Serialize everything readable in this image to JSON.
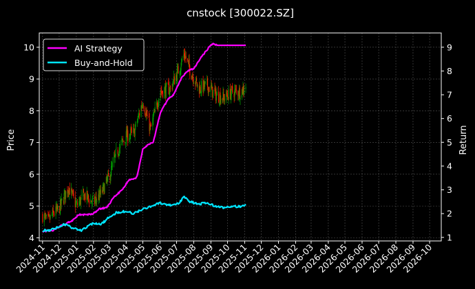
{
  "chart_data": {
    "type": "line",
    "title": "cnstock [300022.SZ]",
    "ylabel_left": "Price",
    "ylabel_right": "Return",
    "ylim_left": [
      3.9,
      10.45
    ],
    "ylim_right": [
      0.85,
      9.6
    ],
    "yticks_left": [
      4,
      5,
      6,
      7,
      8,
      9,
      10
    ],
    "yticks_right": [
      1,
      2,
      3,
      4,
      5,
      6,
      7,
      8,
      9
    ],
    "x_range": [
      "2024-10-26",
      "2026-10-22"
    ],
    "x_ticks": [
      "2024-11",
      "2024-12",
      "2025-01",
      "2025-02",
      "2025-03",
      "2025-04",
      "2025-05",
      "2025-06",
      "2025-07",
      "2025-08",
      "2025-09",
      "2025-10",
      "2025-11",
      "2025-12",
      "2026-01",
      "2026-02",
      "2026-03",
      "2026-04",
      "2026-05",
      "2026-06",
      "2026-07",
      "2026-08",
      "2026-09",
      "2026-10"
    ],
    "grid": true,
    "legend_position": "top-left",
    "colors": {
      "up": "#00a000",
      "down": "#ff1a00",
      "strategy": "#ff00ff",
      "buyhold": "#00e5ff",
      "grid": "#555555",
      "axes": "#ffffff"
    },
    "candles": {
      "name": "Price",
      "anchors": [
        [
          "2024-11-01",
          4.7
        ],
        [
          "2024-11-10",
          4.5
        ],
        [
          "2024-11-20",
          4.75
        ],
        [
          "2024-12-01",
          4.9
        ],
        [
          "2024-12-10",
          5.3
        ],
        [
          "2024-12-18",
          5.6
        ],
        [
          "2025-01-01",
          5.0
        ],
        [
          "2025-01-15",
          5.35
        ],
        [
          "2025-02-01",
          5.1
        ],
        [
          "2025-02-15",
          5.4
        ],
        [
          "2025-03-01",
          5.9
        ],
        [
          "2025-03-15",
          6.7
        ],
        [
          "2025-04-01",
          7.2
        ],
        [
          "2025-04-15",
          7.3
        ],
        [
          "2025-05-01",
          8.3
        ],
        [
          "2025-05-15",
          7.4
        ],
        [
          "2025-06-01",
          8.6
        ],
        [
          "2025-06-20",
          8.7
        ],
        [
          "2025-07-05",
          9.3
        ],
        [
          "2025-07-15",
          9.8
        ],
        [
          "2025-07-25",
          9.3
        ],
        [
          "2025-08-10",
          8.7
        ],
        [
          "2025-08-25",
          8.8
        ],
        [
          "2025-09-10",
          8.5
        ],
        [
          "2025-09-25",
          8.4
        ],
        [
          "2025-10-10",
          8.6
        ],
        [
          "2025-10-25",
          8.6
        ],
        [
          "2025-11-03",
          8.8
        ]
      ]
    },
    "series": [
      {
        "name": "AI Strategy",
        "axis": "right",
        "points": [
          [
            "2024-11-01",
            1.25
          ],
          [
            "2024-11-20",
            1.3
          ],
          [
            "2024-12-01",
            1.45
          ],
          [
            "2024-12-10",
            1.55
          ],
          [
            "2024-12-25",
            1.7
          ],
          [
            "2025-01-05",
            1.95
          ],
          [
            "2025-01-20",
            1.95
          ],
          [
            "2025-02-01",
            2.0
          ],
          [
            "2025-02-12",
            2.2
          ],
          [
            "2025-02-25",
            2.25
          ],
          [
            "2025-03-10",
            2.7
          ],
          [
            "2025-03-25",
            3.0
          ],
          [
            "2025-04-05",
            3.4
          ],
          [
            "2025-04-20",
            3.5
          ],
          [
            "2025-05-01",
            4.7
          ],
          [
            "2025-05-10",
            4.9
          ],
          [
            "2025-05-20",
            5.0
          ],
          [
            "2025-06-01",
            6.2
          ],
          [
            "2025-06-15",
            6.8
          ],
          [
            "2025-06-25",
            7.0
          ],
          [
            "2025-07-10",
            7.7
          ],
          [
            "2025-07-20",
            8.0
          ],
          [
            "2025-08-01",
            8.1
          ],
          [
            "2025-08-15",
            8.6
          ],
          [
            "2025-09-01",
            9.1
          ],
          [
            "2025-09-06",
            9.15
          ],
          [
            "2025-09-12",
            9.08
          ],
          [
            "2025-11-03",
            9.08
          ]
        ]
      },
      {
        "name": "Buy-and-Hold",
        "axis": "right",
        "points": [
          [
            "2024-11-01",
            1.3
          ],
          [
            "2024-11-15",
            1.3
          ],
          [
            "2024-12-01",
            1.45
          ],
          [
            "2024-12-10",
            1.55
          ],
          [
            "2024-12-25",
            1.4
          ],
          [
            "2025-01-10",
            1.3
          ],
          [
            "2025-01-20",
            1.45
          ],
          [
            "2025-02-01",
            1.6
          ],
          [
            "2025-02-15",
            1.55
          ],
          [
            "2025-03-01",
            1.85
          ],
          [
            "2025-03-15",
            2.05
          ],
          [
            "2025-04-01",
            2.1
          ],
          [
            "2025-04-15",
            2.0
          ],
          [
            "2025-05-01",
            2.2
          ],
          [
            "2025-05-15",
            2.3
          ],
          [
            "2025-06-01",
            2.45
          ],
          [
            "2025-06-20",
            2.35
          ],
          [
            "2025-07-05",
            2.45
          ],
          [
            "2025-07-15",
            2.7
          ],
          [
            "2025-07-25",
            2.5
          ],
          [
            "2025-08-10",
            2.4
          ],
          [
            "2025-08-25",
            2.45
          ],
          [
            "2025-09-10",
            2.3
          ],
          [
            "2025-09-25",
            2.25
          ],
          [
            "2025-10-10",
            2.3
          ],
          [
            "2025-10-25",
            2.3
          ],
          [
            "2025-11-03",
            2.35
          ]
        ]
      }
    ]
  }
}
